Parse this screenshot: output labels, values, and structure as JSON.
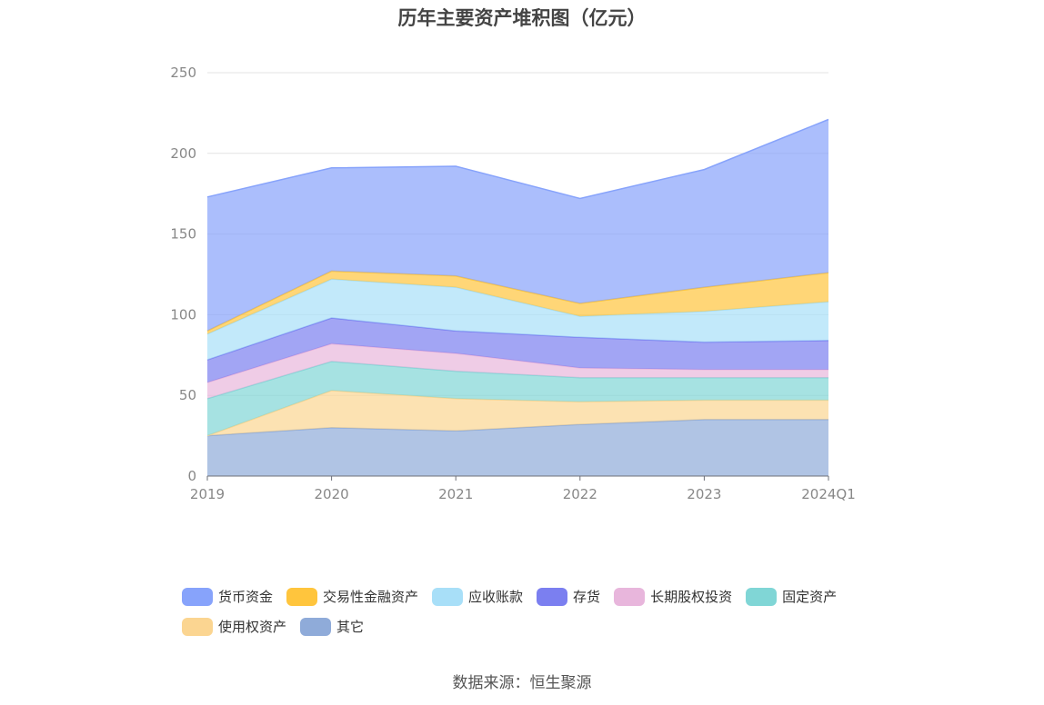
{
  "chart_data": {
    "type": "area",
    "stacked": true,
    "title": "历年主要资产堆积图（亿元）",
    "categories": [
      "2019",
      "2020",
      "2021",
      "2022",
      "2023",
      "2024Q1"
    ],
    "ylim": [
      0,
      250
    ],
    "yticks": [
      0,
      50,
      100,
      150,
      200,
      250
    ],
    "grid": true,
    "legend_position": "bottom",
    "series": [
      {
        "name": "其它",
        "color": "#8fabd9",
        "values": [
          25,
          30,
          28,
          32,
          35,
          35
        ]
      },
      {
        "name": "使用权资产",
        "color": "#fbd591",
        "values": [
          0,
          23,
          20,
          14,
          12,
          12
        ]
      },
      {
        "name": "固定资产",
        "color": "#80d6d6",
        "values": [
          23,
          18,
          17,
          15,
          14,
          14
        ]
      },
      {
        "name": "长期股权投资",
        "color": "#e8b6dc",
        "values": [
          10,
          11,
          11,
          6,
          5,
          5
        ]
      },
      {
        "name": "存货",
        "color": "#7b7ff0",
        "values": [
          14,
          16,
          14,
          19,
          17,
          18
        ]
      },
      {
        "name": "应收账款",
        "color": "#a8dff8",
        "values": [
          16,
          24,
          27,
          13,
          19,
          24
        ]
      },
      {
        "name": "交易性金融资产",
        "color": "#ffc53d",
        "values": [
          2,
          5,
          7,
          8,
          15,
          18
        ]
      },
      {
        "name": "货币资金",
        "color": "#87a3fb",
        "values": [
          83,
          64,
          68,
          65,
          73,
          95
        ]
      }
    ]
  },
  "legend": {
    "row1": [
      {
        "label": "货币资金",
        "color": "#87a3fb"
      },
      {
        "label": "交易性金融资产",
        "color": "#ffc53d"
      },
      {
        "label": "应收账款",
        "color": "#a8dff8"
      },
      {
        "label": "存货",
        "color": "#7b7ff0"
      },
      {
        "label": "长期股权投资",
        "color": "#e8b6dc"
      },
      {
        "label": "固定资产",
        "color": "#80d6d6"
      }
    ],
    "row2": [
      {
        "label": "使用权资产",
        "color": "#fbd591"
      },
      {
        "label": "其它",
        "color": "#8fabd9"
      }
    ]
  },
  "source": "数据来源：恒生聚源"
}
